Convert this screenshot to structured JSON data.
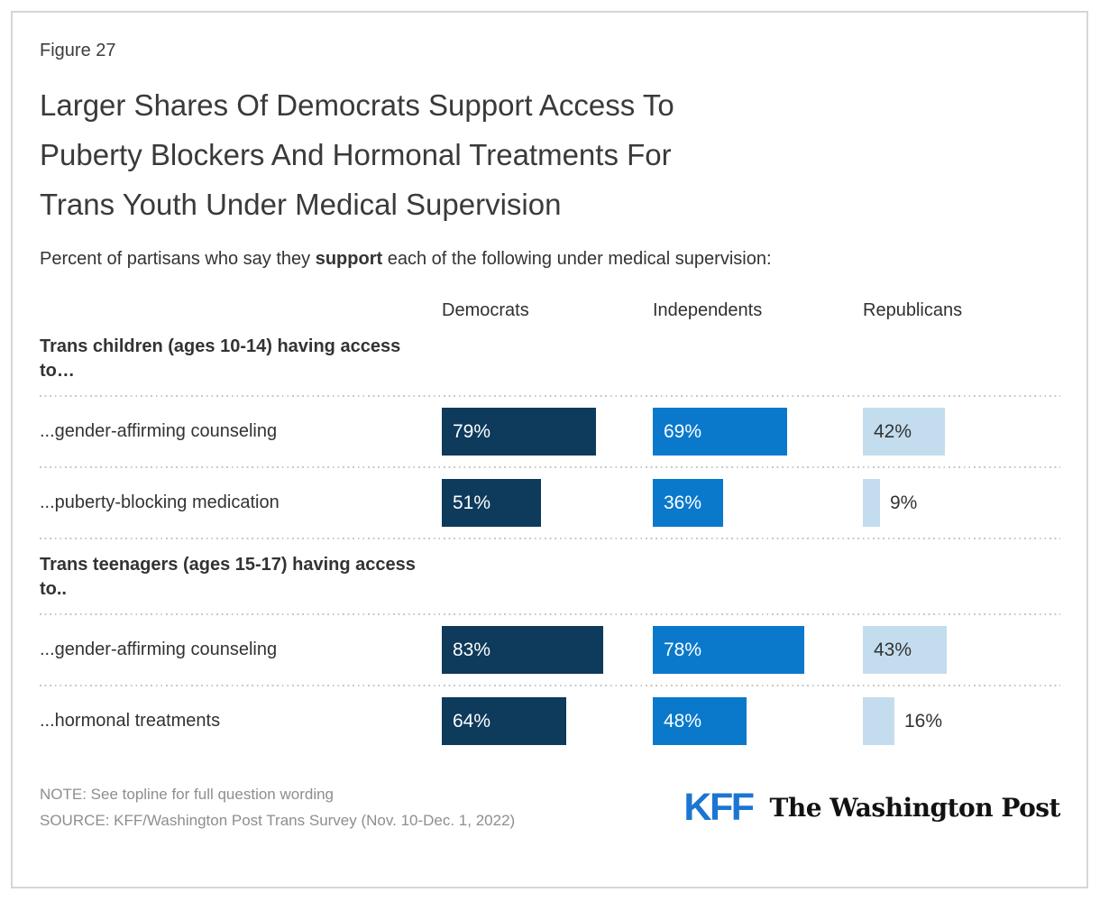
{
  "figure_label": "Figure 27",
  "title_lines": [
    "Larger Shares Of Democrats Support Access To",
    "Puberty Blockers And Hormonal Treatments For",
    "Trans Youth Under Medical Supervision"
  ],
  "subtitle": {
    "prefix": "Percent of partisans who say they ",
    "bold": "support",
    "suffix": " each of the following under medical supervision:"
  },
  "chart_data": {
    "type": "bar",
    "orientation": "horizontal",
    "unit": "%",
    "xlim": [
      0,
      100
    ],
    "parties": [
      "Democrats",
      "Independents",
      "Republicans"
    ],
    "bar_colors": [
      "#0e3a5c",
      "#0a79cc",
      "#c3ddee"
    ],
    "value_text_colors": [
      "#ffffff",
      "#ffffff",
      "#333333"
    ],
    "inside_label_min": 20,
    "groups": [
      {
        "header": "Trans children (ages 10-14) having access to…",
        "rows": [
          {
            "label": "...gender-affirming counseling",
            "values": [
              79,
              69,
              42
            ]
          },
          {
            "label": "...puberty-blocking medication",
            "values": [
              51,
              36,
              9
            ]
          }
        ]
      },
      {
        "header": "Trans teenagers (ages 15-17) having access to..",
        "rows": [
          {
            "label": "...gender-affirming counseling",
            "values": [
              83,
              78,
              43
            ]
          },
          {
            "label": "...hormonal treatments",
            "values": [
              64,
              48,
              16
            ]
          }
        ]
      }
    ]
  },
  "footer": {
    "note": "NOTE: See topline for full question wording",
    "source": "SOURCE: KFF/Washington Post Trans Survey (Nov. 10-Dec. 1, 2022)",
    "kff_logo_text": "KFF",
    "wapo_logo_text": "The Washington Post"
  }
}
